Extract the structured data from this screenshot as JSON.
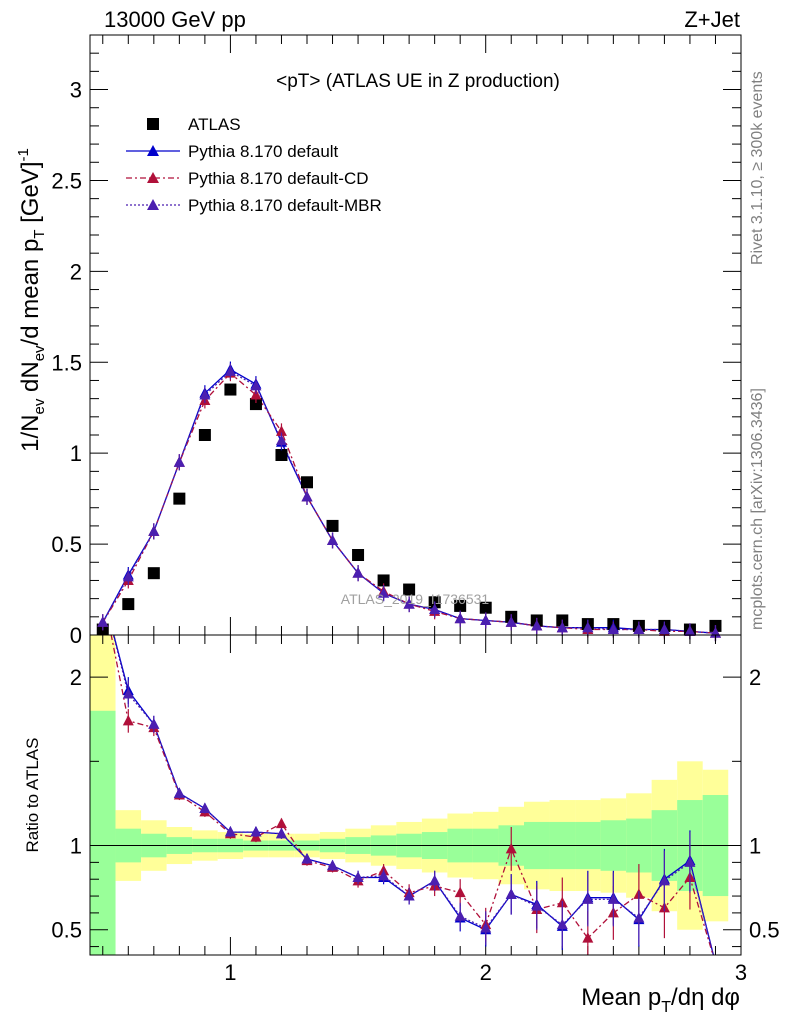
{
  "header": {
    "energy_label": "13000 GeV pp",
    "process_label": "Z+Jet"
  },
  "side_labels": {
    "rivet": "Rivet 3.1.10, ≥ 300k events",
    "mcplots": "mcplots.cern.ch [arXiv:1306.3436]"
  },
  "watermark": "ATLAS_2019_I1736531",
  "chart_data": [
    {
      "type": "scatter",
      "title": "<pT> (ATLAS UE in Z production)",
      "xlabel": "Mean p_T/dη dφ",
      "ylabel": "1/N_ev dN_ev/d mean p_T [GeV]^-1",
      "xlim": [
        0.45,
        3.0
      ],
      "ylim": [
        0,
        3.3
      ],
      "x_ticks": [
        1,
        2,
        3
      ],
      "y_ticks": [
        0,
        0.5,
        1,
        1.5,
        2,
        2.5,
        3
      ],
      "y_tick_labels": [
        "0",
        "0.5",
        "1",
        "1.5",
        "2",
        "2.5",
        "3"
      ],
      "legend_position": "top-left",
      "x": [
        0.5,
        0.6,
        0.7,
        0.8,
        0.9,
        1.0,
        1.1,
        1.2,
        1.3,
        1.4,
        1.5,
        1.6,
        1.7,
        1.8,
        1.9,
        2.0,
        2.1,
        2.2,
        2.3,
        2.4,
        2.5,
        2.6,
        2.7,
        2.8,
        2.9
      ],
      "series": [
        {
          "name": "ATLAS",
          "color": "#000000",
          "marker": "square",
          "values": [
            0.03,
            0.17,
            0.34,
            0.75,
            1.1,
            1.35,
            1.27,
            0.99,
            0.84,
            0.6,
            0.44,
            0.3,
            0.25,
            0.18,
            0.16,
            0.15,
            0.1,
            0.08,
            0.08,
            0.06,
            0.06,
            0.05,
            0.05,
            0.03,
            0.05
          ]
        },
        {
          "name": "Pythia 8.170 default",
          "color": "#0000cc",
          "marker": "triangle",
          "line": "solid",
          "values": [
            0.07,
            0.33,
            0.57,
            0.95,
            1.33,
            1.46,
            1.38,
            1.06,
            0.76,
            0.52,
            0.34,
            0.23,
            0.17,
            0.14,
            0.09,
            0.08,
            0.07,
            0.05,
            0.04,
            0.04,
            0.04,
            0.03,
            0.03,
            0.02,
            0.01
          ]
        },
        {
          "name": "Pythia 8.170 default-CD",
          "color": "#b0103a",
          "marker": "triangle",
          "line": "dashdot",
          "values": [
            0.07,
            0.3,
            0.57,
            0.95,
            1.29,
            1.44,
            1.32,
            1.12,
            0.76,
            0.52,
            0.34,
            0.24,
            0.17,
            0.13,
            0.09,
            0.08,
            0.07,
            0.05,
            0.04,
            0.03,
            0.03,
            0.03,
            0.02,
            0.02,
            0.01
          ]
        },
        {
          "name": "Pythia 8.170 default-MBR",
          "color": "#4b1fb0",
          "marker": "triangle",
          "line": "dotted",
          "values": [
            0.07,
            0.32,
            0.57,
            0.95,
            1.32,
            1.45,
            1.37,
            1.07,
            0.76,
            0.52,
            0.34,
            0.23,
            0.17,
            0.14,
            0.09,
            0.08,
            0.07,
            0.05,
            0.04,
            0.04,
            0.03,
            0.03,
            0.03,
            0.02,
            0.01
          ]
        }
      ]
    },
    {
      "type": "line",
      "ylabel": "Ratio to ATLAS",
      "xlim": [
        0.45,
        3.0
      ],
      "ylim": [
        0.35,
        2.25
      ],
      "x_ticks": [
        1,
        2,
        3
      ],
      "y_ticks": [
        0.5,
        1,
        2
      ],
      "y_tick_labels": [
        "0.5",
        "1",
        "2"
      ],
      "x": [
        0.6,
        0.7,
        0.8,
        0.9,
        1.0,
        1.1,
        1.2,
        1.3,
        1.4,
        1.5,
        1.6,
        1.7,
        1.8,
        1.9,
        2.0,
        2.1,
        2.2,
        2.3,
        2.4,
        2.5,
        2.6,
        2.7,
        2.8
      ],
      "uncertainty_bands": {
        "bin_edges": [
          0.45,
          0.55,
          0.65,
          0.75,
          0.85,
          0.95,
          1.05,
          1.15,
          1.25,
          1.35,
          1.45,
          1.55,
          1.65,
          1.75,
          1.85,
          1.95,
          2.05,
          2.15,
          2.25,
          2.35,
          2.45,
          2.55,
          2.65,
          2.75,
          2.85,
          2.95
        ],
        "stat_low": [
          0.0,
          0.9,
          0.93,
          0.95,
          0.96,
          0.96,
          0.97,
          0.97,
          0.97,
          0.96,
          0.95,
          0.94,
          0.93,
          0.92,
          0.9,
          0.9,
          0.88,
          0.86,
          0.86,
          0.86,
          0.85,
          0.84,
          0.79,
          0.73,
          0.7
        ],
        "stat_high": [
          1.8,
          1.1,
          1.07,
          1.05,
          1.04,
          1.04,
          1.03,
          1.03,
          1.03,
          1.04,
          1.05,
          1.06,
          1.07,
          1.08,
          1.1,
          1.1,
          1.12,
          1.14,
          1.14,
          1.14,
          1.15,
          1.16,
          1.21,
          1.27,
          1.3
        ],
        "total_low": [
          0.0,
          0.79,
          0.85,
          0.89,
          0.91,
          0.92,
          0.93,
          0.93,
          0.93,
          0.92,
          0.9,
          0.88,
          0.86,
          0.84,
          0.81,
          0.8,
          0.77,
          0.74,
          0.73,
          0.73,
          0.72,
          0.69,
          0.61,
          0.5,
          0.55
        ],
        "total_high": [
          2.25,
          1.21,
          1.15,
          1.11,
          1.09,
          1.08,
          1.07,
          1.07,
          1.07,
          1.08,
          1.1,
          1.12,
          1.14,
          1.16,
          1.19,
          1.2,
          1.23,
          1.26,
          1.27,
          1.27,
          1.28,
          1.31,
          1.39,
          1.5,
          1.45
        ],
        "stat_color": "#99ff99",
        "total_color": "#ffff99"
      },
      "series": [
        {
          "name": "Pythia 8.170 default",
          "color": "#0000cc",
          "line": "solid",
          "values": [
            1.92,
            1.72,
            1.31,
            1.22,
            1.08,
            1.08,
            1.07,
            0.92,
            0.88,
            0.81,
            0.81,
            0.7,
            0.79,
            0.57,
            0.5,
            0.71,
            0.65,
            0.52,
            0.69,
            0.69,
            0.56,
            0.8,
            0.91
          ],
          "errors": [
            0.08,
            0.05,
            0.03,
            0.03,
            0.03,
            0.03,
            0.03,
            0.03,
            0.03,
            0.04,
            0.04,
            0.05,
            0.06,
            0.08,
            0.1,
            0.12,
            0.14,
            0.14,
            0.16,
            0.16,
            0.16,
            0.18,
            0.18
          ]
        },
        {
          "name": "Pythia 8.170 default-CD",
          "color": "#b0103a",
          "line": "dashdot",
          "values": [
            1.74,
            1.7,
            1.3,
            1.2,
            1.07,
            1.05,
            1.13,
            0.91,
            0.87,
            0.79,
            0.85,
            0.72,
            0.76,
            0.72,
            0.53,
            0.98,
            0.62,
            0.66,
            0.45,
            0.6,
            0.71,
            0.63,
            0.81
          ],
          "errors": [
            0.07,
            0.05,
            0.03,
            0.03,
            0.03,
            0.03,
            0.03,
            0.03,
            0.03,
            0.04,
            0.04,
            0.05,
            0.06,
            0.08,
            0.1,
            0.13,
            0.14,
            0.15,
            0.16,
            0.16,
            0.18,
            0.18,
            0.19
          ]
        },
        {
          "name": "Pythia 8.170 default-MBR",
          "color": "#4b1fb0",
          "line": "dotted",
          "values": [
            1.9,
            1.72,
            1.31,
            1.22,
            1.08,
            1.08,
            1.07,
            0.92,
            0.88,
            0.81,
            0.82,
            0.7,
            0.79,
            0.58,
            0.51,
            0.71,
            0.64,
            0.53,
            0.68,
            0.68,
            0.57,
            0.79,
            0.9
          ],
          "errors": [
            0.08,
            0.05,
            0.03,
            0.03,
            0.03,
            0.03,
            0.03,
            0.03,
            0.03,
            0.04,
            0.04,
            0.05,
            0.06,
            0.08,
            0.1,
            0.12,
            0.14,
            0.14,
            0.16,
            0.16,
            0.16,
            0.18,
            0.18
          ]
        }
      ]
    }
  ]
}
